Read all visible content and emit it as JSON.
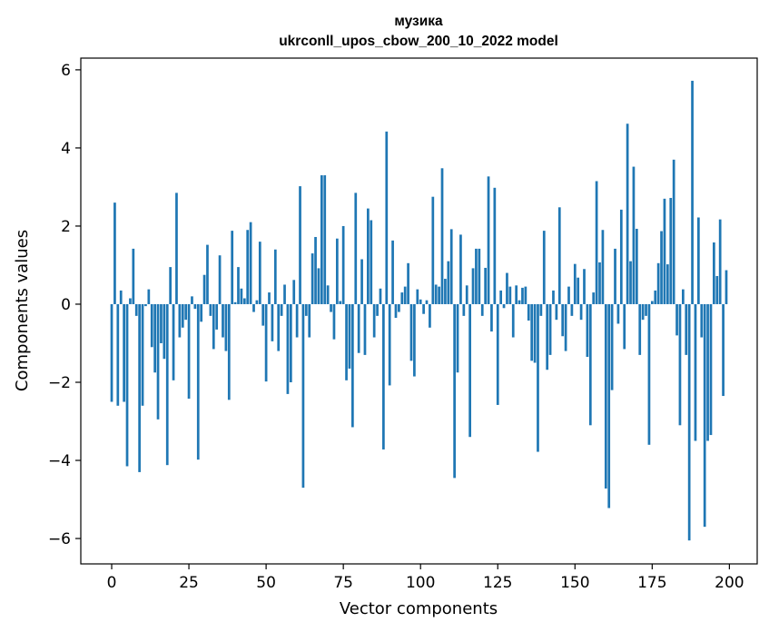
{
  "chart_data": {
    "type": "bar",
    "title": "музика",
    "subtitle": "ukrconll_upos_cbow_200_10_2022 model",
    "xlabel": "Vector components",
    "ylabel": "Components values",
    "xlim": [
      -10,
      209
    ],
    "ylim": [
      -6.65,
      6.3
    ],
    "xticks": [
      0,
      25,
      50,
      75,
      100,
      125,
      150,
      175,
      200
    ],
    "xtick_labels": [
      "0",
      "25",
      "50",
      "75",
      "100",
      "125",
      "150",
      "175",
      "200"
    ],
    "yticks": [
      -6,
      -4,
      -2,
      0,
      2,
      4,
      6
    ],
    "ytick_labels": [
      "−6",
      "−4",
      "−2",
      "0",
      "2",
      "4",
      "6"
    ],
    "grid": false,
    "bar_color": "#1f77b4",
    "x": [
      0,
      1,
      2,
      3,
      4,
      5,
      6,
      7,
      8,
      9,
      10,
      11,
      12,
      13,
      14,
      15,
      16,
      17,
      18,
      19,
      20,
      21,
      22,
      23,
      24,
      25,
      26,
      27,
      28,
      29,
      30,
      31,
      32,
      33,
      34,
      35,
      36,
      37,
      38,
      39,
      40,
      41,
      42,
      43,
      44,
      45,
      46,
      47,
      48,
      49,
      50,
      51,
      52,
      53,
      54,
      55,
      56,
      57,
      58,
      59,
      60,
      61,
      62,
      63,
      64,
      65,
      66,
      67,
      68,
      69,
      70,
      71,
      72,
      73,
      74,
      75,
      76,
      77,
      78,
      79,
      80,
      81,
      82,
      83,
      84,
      85,
      86,
      87,
      88,
      89,
      90,
      91,
      92,
      93,
      94,
      95,
      96,
      97,
      98,
      99,
      100,
      101,
      102,
      103,
      104,
      105,
      106,
      107,
      108,
      109,
      110,
      111,
      112,
      113,
      114,
      115,
      116,
      117,
      118,
      119,
      120,
      121,
      122,
      123,
      124,
      125,
      126,
      127,
      128,
      129,
      130,
      131,
      132,
      133,
      134,
      135,
      136,
      137,
      138,
      139,
      140,
      141,
      142,
      143,
      144,
      145,
      146,
      147,
      148,
      149,
      150,
      151,
      152,
      153,
      154,
      155,
      156,
      157,
      158,
      159,
      160,
      161,
      162,
      163,
      164,
      165,
      166,
      167,
      168,
      169,
      170,
      171,
      172,
      173,
      174,
      175,
      176,
      177,
      178,
      179,
      180,
      181,
      182,
      183,
      184,
      185,
      186,
      187,
      188,
      189,
      190,
      191,
      192,
      193,
      194,
      195,
      196,
      197,
      198,
      199
    ],
    "values": [
      -2.5,
      2.6,
      -2.6,
      0.35,
      -2.5,
      -4.15,
      0.15,
      1.42,
      -0.3,
      -4.3,
      -2.6,
      -0.05,
      0.38,
      -1.1,
      -1.75,
      -2.95,
      -1.0,
      -1.4,
      -4.12,
      0.95,
      -1.95,
      2.85,
      -0.85,
      -0.6,
      -0.4,
      -2.42,
      0.2,
      -0.12,
      -3.98,
      -0.45,
      0.75,
      1.52,
      -0.3,
      -1.15,
      -0.65,
      1.25,
      -0.85,
      -1.2,
      -2.45,
      1.88,
      0.05,
      0.95,
      0.4,
      0.15,
      1.9,
      2.1,
      -0.2,
      0.1,
      1.6,
      -0.55,
      -1.98,
      0.3,
      -0.95,
      1.4,
      -1.2,
      -0.3,
      0.5,
      -2.3,
      -2.0,
      0.62,
      -0.85,
      3.02,
      -4.7,
      -0.3,
      -0.85,
      1.3,
      1.72,
      0.92,
      3.3,
      3.3,
      0.48,
      -0.2,
      -0.9,
      1.68,
      0.08,
      2.0,
      -1.95,
      -1.65,
      -3.15,
      2.85,
      -1.25,
      1.15,
      -1.3,
      2.45,
      2.15,
      -0.85,
      -0.3,
      0.4,
      -3.72,
      4.42,
      -2.08,
      1.63,
      -0.35,
      -0.2,
      0.3,
      0.45,
      1.05,
      -1.45,
      -1.85,
      0.38,
      0.12,
      -0.25,
      0.1,
      -0.6,
      2.75,
      0.5,
      0.45,
      3.48,
      0.65,
      1.1,
      1.92,
      -4.45,
      -1.75,
      1.78,
      -0.3,
      0.48,
      -3.4,
      0.92,
      1.42,
      1.42,
      -0.3,
      0.93,
      3.27,
      -0.7,
      2.98,
      -2.58,
      0.35,
      -0.1,
      0.8,
      0.45,
      -0.85,
      0.48,
      0.1,
      0.42,
      0.45,
      -0.42,
      -1.45,
      -1.5,
      -3.78,
      -0.3,
      1.88,
      -1.68,
      -1.3,
      0.35,
      -0.4,
      2.48,
      -0.82,
      -1.2,
      0.45,
      -0.3,
      1.03,
      0.68,
      -0.4,
      0.9,
      -1.35,
      -3.1,
      0.3,
      3.15,
      1.07,
      1.9,
      -4.72,
      -5.22,
      -2.2,
      1.42,
      -0.5,
      2.42,
      -1.15,
      4.62,
      1.1,
      3.52,
      1.93,
      -1.3,
      -0.4,
      -0.3,
      -3.6,
      0.08,
      0.35,
      1.05,
      1.87,
      2.7,
      1.02,
      2.72,
      3.7,
      -0.8,
      -3.1,
      0.38,
      -1.3,
      -6.05,
      5.72,
      -3.5,
      2.22,
      -0.85,
      -5.7,
      -3.5,
      -3.35,
      1.58,
      0.72,
      2.17,
      -2.35,
      0.87
    ]
  }
}
